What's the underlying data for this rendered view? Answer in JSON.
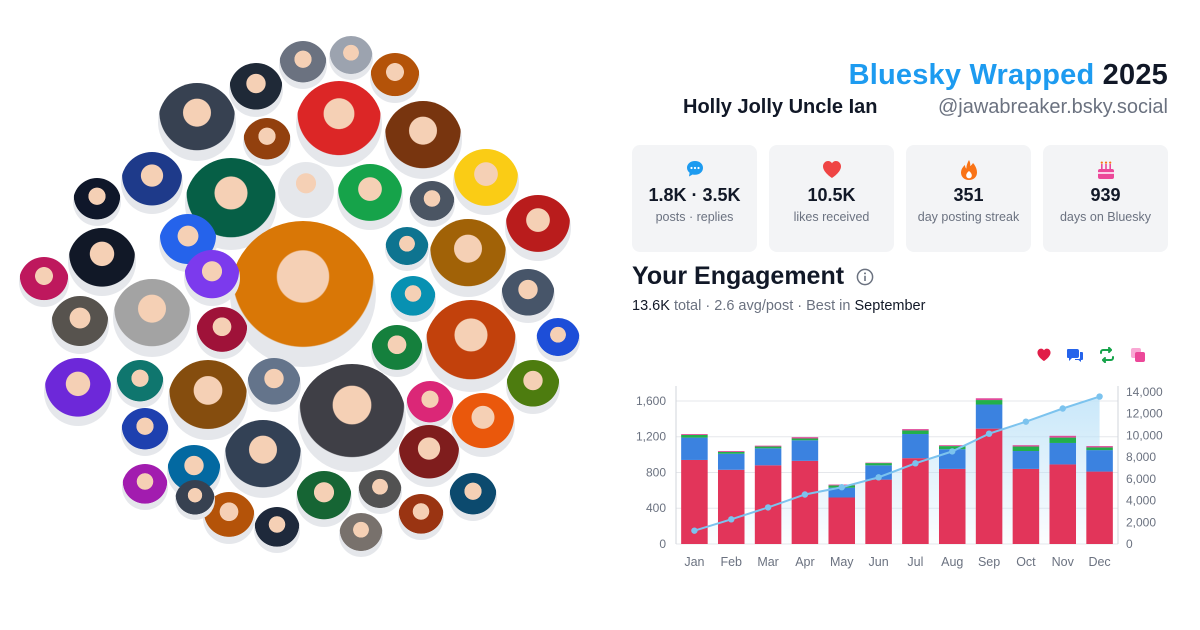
{
  "header": {
    "brand": "Bluesky Wrapped",
    "year": "2025",
    "display_name": "Holly Jolly Uncle Ian",
    "handle": "@jawabreaker.bsky.social"
  },
  "stats": [
    {
      "icon": "speech-bubble-icon",
      "value": "1.8K · 3.5K",
      "label": "posts · replies",
      "color": "#1d9bf0"
    },
    {
      "icon": "heart-icon",
      "value": "10.5K",
      "label": "likes received",
      "color": "#ef4444"
    },
    {
      "icon": "flame-icon",
      "value": "351",
      "label": "day posting streak",
      "color": "#f97316"
    },
    {
      "icon": "cake-icon",
      "value": "939",
      "label": "days on Bluesky",
      "color": "#ec4899"
    }
  ],
  "engagement": {
    "title": "Your Engagement",
    "total": "13.6K",
    "total_word": "total",
    "avg": "2.6 avg/post",
    "best_prefix": "Best in",
    "best_month": "September",
    "separator": " · "
  },
  "legend_icons": [
    {
      "icon": "heart-icon",
      "color": "#e11d48"
    },
    {
      "icon": "reply-icon",
      "color": "#2563eb"
    },
    {
      "icon": "repost-icon",
      "color": "#16a34a"
    },
    {
      "icon": "quote-icon",
      "color": "#ec4899"
    }
  ],
  "colors": {
    "likes": "#e2355a",
    "replies": "#3b82e0",
    "reposts": "#22b04b",
    "quotes": "#e04a9a",
    "cumulative": "#7cc3ee",
    "cumulative_fill": "#bfe3f8"
  },
  "chart_data": {
    "type": "bar",
    "stacked": true,
    "categories": [
      "Jan",
      "Feb",
      "Mar",
      "Apr",
      "May",
      "Jun",
      "Jul",
      "Aug",
      "Sep",
      "Oct",
      "Nov",
      "Dec"
    ],
    "series": [
      {
        "key": "likes",
        "values": [
          940,
          830,
          880,
          930,
          520,
          720,
          960,
          840,
          1290,
          840,
          890,
          810
        ]
      },
      {
        "key": "replies",
        "values": [
          250,
          180,
          190,
          230,
          110,
          160,
          270,
          220,
          270,
          200,
          240,
          240
        ]
      },
      {
        "key": "reposts",
        "values": [
          30,
          20,
          20,
          20,
          25,
          25,
          40,
          35,
          50,
          50,
          60,
          30
        ]
      },
      {
        "key": "quotes",
        "values": [
          10,
          10,
          10,
          15,
          10,
          5,
          15,
          10,
          20,
          15,
          20,
          15
        ]
      }
    ],
    "cumulative": {
      "type": "area",
      "values": [
        1230,
        2270,
        3370,
        4560,
        5230,
        6140,
        7430,
        8530,
        10160,
        11270,
        12480,
        13580
      ]
    },
    "ylim_left": [
      0,
      1700
    ],
    "yticks_left": [
      0,
      400,
      800,
      1200,
      1600
    ],
    "ytick_labels_left": [
      "0",
      "400",
      "800",
      "1,200",
      "1,600"
    ],
    "ylim_right": [
      0,
      14000
    ],
    "yticks_right": [
      0,
      2000,
      4000,
      6000,
      8000,
      10000,
      12000,
      14000
    ],
    "ytick_labels_right": [
      "0",
      "2,000",
      "4,000",
      "6,000",
      "8,000",
      "10,000",
      "12,000",
      "14,000"
    ],
    "grid": true
  },
  "avatars": [
    {
      "color": "#6b7280"
    },
    {
      "color": "#9ca3af"
    },
    {
      "color": "#b45309"
    },
    {
      "color": "#1f2937"
    },
    {
      "color": "#374151"
    },
    {
      "color": "#dc2626"
    },
    {
      "color": "#92400e"
    },
    {
      "color": "#78350f"
    },
    {
      "color": "#facc15"
    },
    {
      "color": "#1e3a8a"
    },
    {
      "color": "#065f46"
    },
    {
      "color": "#e5e7eb"
    },
    {
      "color": "#16a34a"
    },
    {
      "color": "#4b5563"
    },
    {
      "color": "#b91c1c"
    },
    {
      "color": "#0f172a"
    },
    {
      "color": "#2563eb"
    },
    {
      "color": "#d97706"
    },
    {
      "color": "#0e7490"
    },
    {
      "color": "#a16207"
    },
    {
      "color": "#111827"
    },
    {
      "color": "#7c3aed"
    },
    {
      "color": "#be185d"
    },
    {
      "color": "#475569"
    },
    {
      "color": "#0891b2"
    },
    {
      "color": "#a3a3a3"
    },
    {
      "color": "#57534e"
    },
    {
      "color": "#9f1239"
    },
    {
      "color": "#15803d"
    },
    {
      "color": "#c2410c"
    },
    {
      "color": "#1d4ed8"
    },
    {
      "color": "#6d28d9"
    },
    {
      "color": "#0f766e"
    },
    {
      "color": "#854d0e"
    },
    {
      "color": "#64748b"
    },
    {
      "color": "#3f3f46"
    },
    {
      "color": "#db2777"
    },
    {
      "color": "#4d7c0f"
    },
    {
      "color": "#ea580c"
    },
    {
      "color": "#1e40af"
    },
    {
      "color": "#334155"
    },
    {
      "color": "#7f1d1d"
    },
    {
      "color": "#0369a1"
    },
    {
      "color": "#a21caf"
    },
    {
      "color": "#166534"
    },
    {
      "color": "#525252"
    },
    {
      "color": "#b45309"
    },
    {
      "color": "#1e293b"
    },
    {
      "color": "#9a3412"
    },
    {
      "color": "#0c4a6e"
    },
    {
      "color": "#78716c"
    },
    {
      "color": "#374151"
    }
  ]
}
